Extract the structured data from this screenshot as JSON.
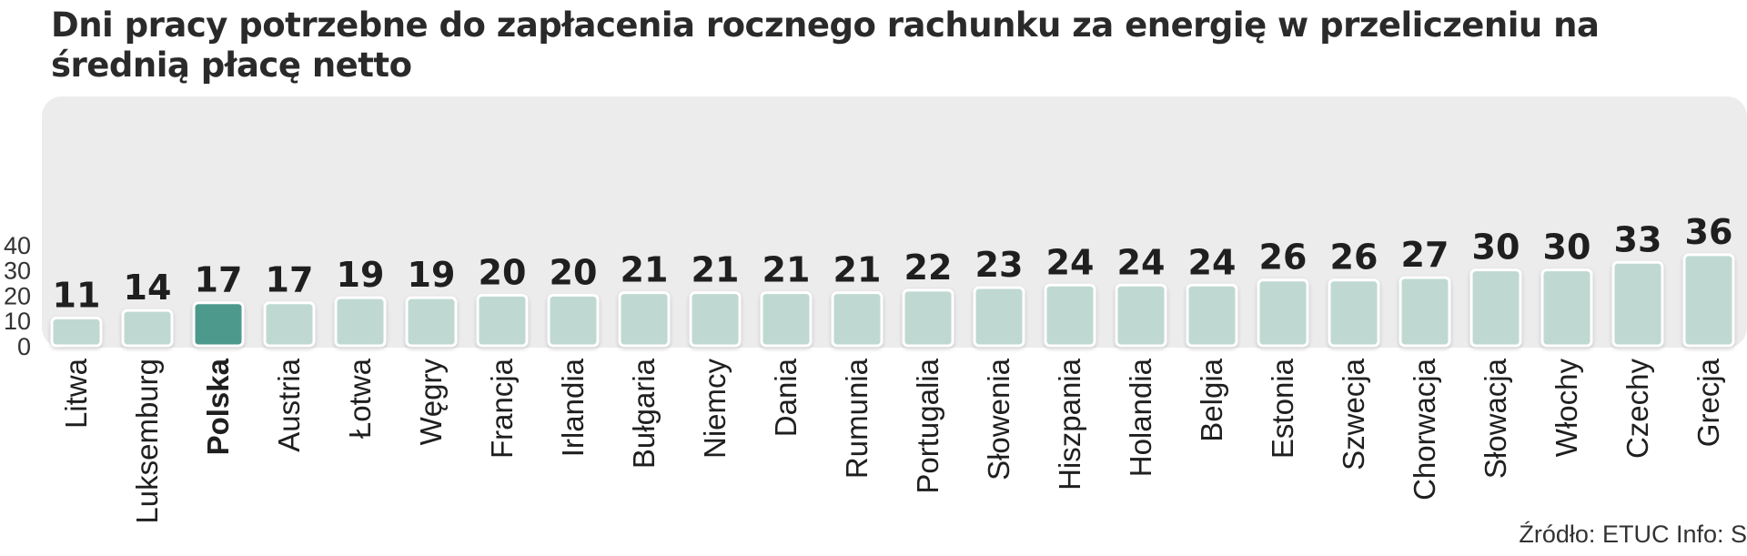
{
  "chart_data": {
    "type": "bar",
    "title": "Dni pracy potrzebne do zapłacenia rocznego rachunku za energię w przeliczeniu na średnią płacę netto",
    "categories": [
      "Litwa",
      "Luksemburg",
      "Polska",
      "Austria",
      "Łotwa",
      "Węgry",
      "Francja",
      "Irlandia",
      "Bułgaria",
      "Niemcy",
      "Dania",
      "Rumunia",
      "Portugalia",
      "Słowenia",
      "Hiszpania",
      "Holandia",
      "Belgia",
      "Estonia",
      "Szwecja",
      "Chorwacja",
      "Słowacja",
      "Włochy",
      "Czechy",
      "Grecja"
    ],
    "values": [
      11,
      14,
      17,
      17,
      19,
      19,
      20,
      20,
      21,
      21,
      21,
      21,
      22,
      23,
      24,
      24,
      24,
      26,
      26,
      27,
      30,
      30,
      33,
      36
    ],
    "highlight": "Polska",
    "yticks": [
      0,
      10,
      20,
      30,
      40
    ],
    "ylim": [
      0,
      40
    ],
    "grid": false,
    "colors": {
      "bar": "#bfd9d2",
      "bar_highlight": "#4e9a8c",
      "bar_border": "#ffffff",
      "panel": "#ececec"
    }
  },
  "source": "Źródło: ETUC   Info: S"
}
